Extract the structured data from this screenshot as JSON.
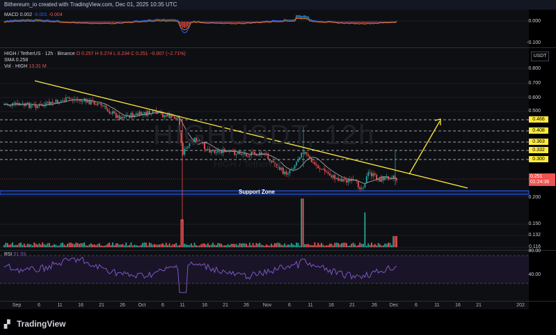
{
  "header": {
    "attribution": "Bithereum_io created with TradingView.com, Dec 01, 2025 10:35 UTC"
  },
  "macd": {
    "label": "MACD",
    "v1": "0.002",
    "v2": "-0.001",
    "v3": "-0.004",
    "scale": [
      "0.000",
      "-0.100"
    ]
  },
  "main": {
    "symbol_line": "HIGH / TetherUS · 12h · Binance",
    "ohlc": "O 0.257  H 0.274  L 0.234  C 0.251  −0.007 (−2.71%)",
    "sma_label": "SMA",
    "sma_value": "0.258",
    "vol_label": "Vol · HIGH",
    "vol_value": "13.31 M",
    "currency": "USDT",
    "watermark": "HIGHUSDT, 12h",
    "watermark_sub": "HIGH / TetherUS",
    "support_label": "Support Zone",
    "price_scale": [
      "0.800",
      "0.700",
      "0.600",
      "0.500",
      "0.200",
      "0.150",
      "0.132",
      "0.116"
    ],
    "levels": [
      "0.466",
      "0.408",
      "0.363",
      "0.332",
      "0.300"
    ],
    "current_price": "0.251",
    "countdown": "01:24:36"
  },
  "rsi": {
    "label": "RSI",
    "value": "51.59",
    "scale": [
      "80.00",
      "40.00"
    ]
  },
  "xaxis": [
    "Sep",
    "6",
    "11",
    "16",
    "21",
    "26",
    "Oct",
    "6",
    "11",
    "16",
    "21",
    "26",
    "Nov",
    "6",
    "11",
    "16",
    "21",
    "26",
    "Dec",
    "6",
    "11",
    "16",
    "21",
    "202"
  ],
  "footer": {
    "brand": "TradingView"
  },
  "colors": {
    "trendline": "#ffeb3b",
    "support": "#2962ff",
    "up": "#26a69a",
    "down": "#ef5350",
    "sma": "#b2b5be",
    "macd": "#2962ff",
    "signal": "#ff6d00",
    "rsi": "#7e57c2"
  }
}
